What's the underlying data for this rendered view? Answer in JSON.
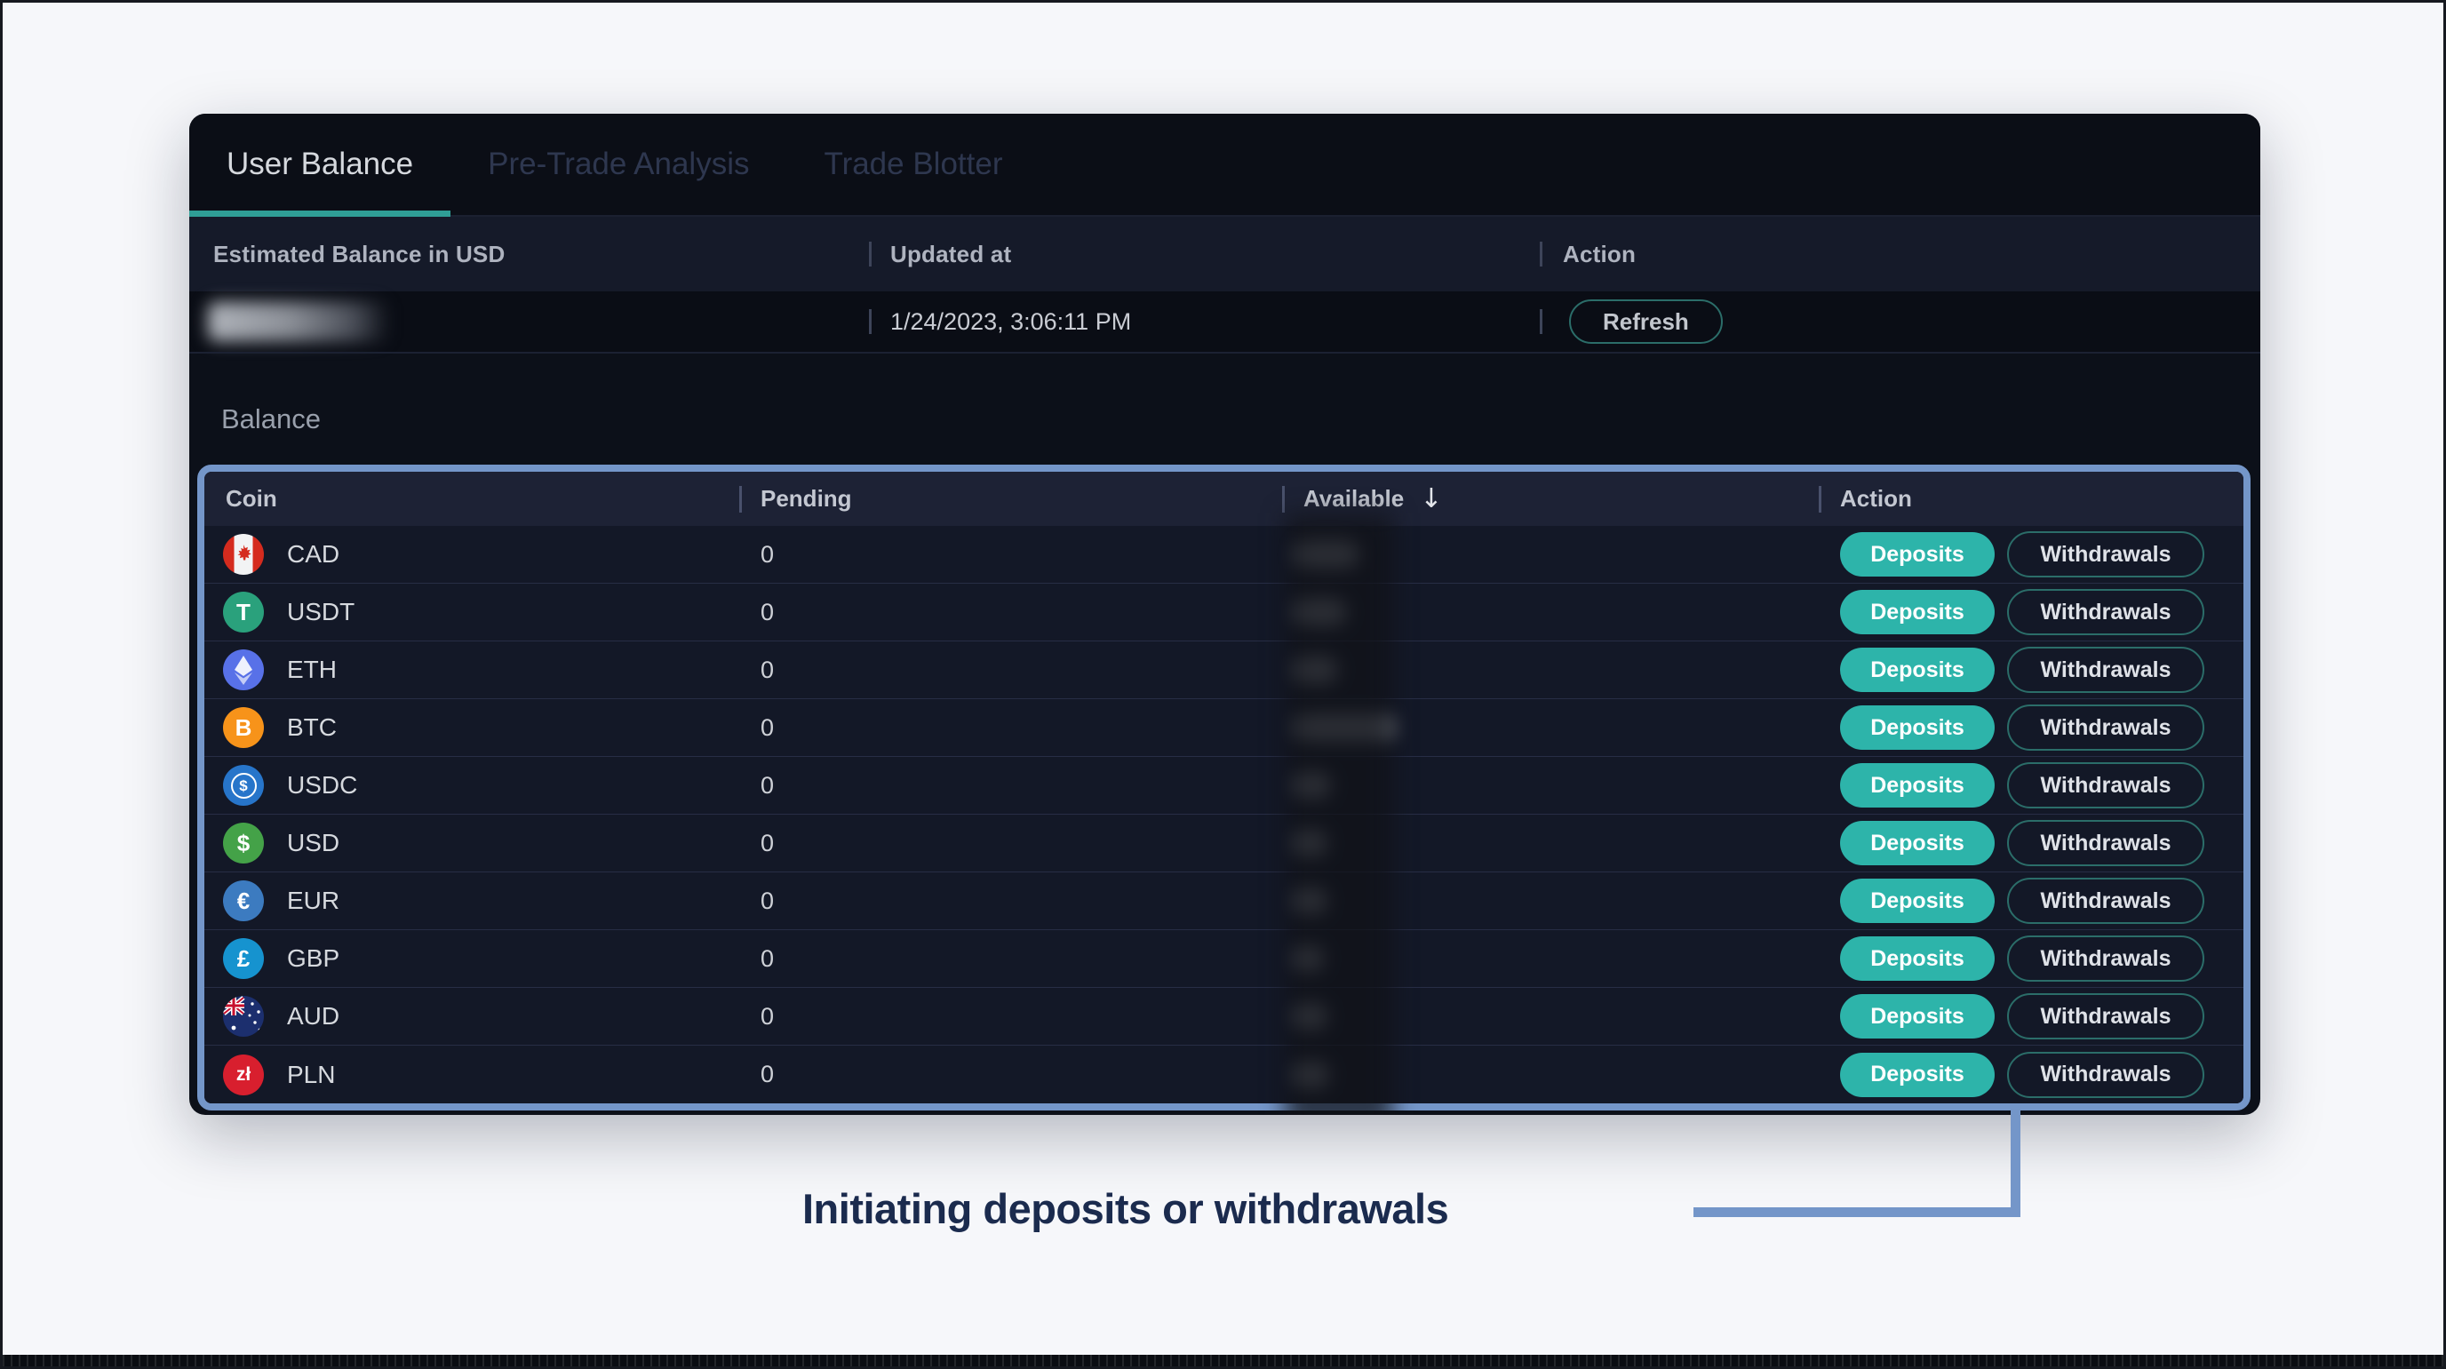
{
  "tabs": [
    {
      "label": "User Balance",
      "active": true
    },
    {
      "label": "Pre-Trade Analysis",
      "active": false
    },
    {
      "label": "Trade Blotter",
      "active": false
    }
  ],
  "summary": {
    "headers": [
      "Estimated Balance in USD",
      "Updated at",
      "Action"
    ],
    "balance_redacted": true,
    "updated_at": "1/24/2023, 3:06:11 PM",
    "refresh_label": "Refresh"
  },
  "balance_section": {
    "title": "Balance"
  },
  "table": {
    "headers": [
      {
        "label": "Coin",
        "sortable": false
      },
      {
        "label": "Pending",
        "sortable": false
      },
      {
        "label": "Available",
        "sortable": true,
        "sort": "desc",
        "sort_icon": "arrow-down"
      },
      {
        "label": "Action",
        "sortable": false
      }
    ],
    "buttons": {
      "deposit": "Deposits",
      "withdraw": "Withdrawals"
    },
    "rows": [
      {
        "coin": "CAD",
        "icon": "canada-flag-icon",
        "icon_kind": "cad",
        "icon_bg": "",
        "icon_glyph": "",
        "pending": "0",
        "available_redacted": true,
        "redact_w": 72
      },
      {
        "coin": "USDT",
        "icon": "tether-icon",
        "icon_kind": "glyph",
        "icon_bg": "#2aa17c",
        "icon_glyph": "T",
        "pending": "0",
        "available_redacted": true,
        "redact_w": 58
      },
      {
        "coin": "ETH",
        "icon": "ethereum-icon",
        "icon_kind": "eth",
        "icon_bg": "#5871e8",
        "icon_glyph": "",
        "pending": "0",
        "available_redacted": true,
        "redact_w": 48
      },
      {
        "coin": "BTC",
        "icon": "bitcoin-icon",
        "icon_kind": "glyph",
        "icon_bg": "#f7931a",
        "icon_glyph": "B",
        "pending": "0",
        "available_redacted": true,
        "redact_w": 112
      },
      {
        "coin": "USDC",
        "icon": "usd-coin-icon",
        "icon_kind": "ring",
        "icon_bg": "#2775ca",
        "icon_glyph": "$",
        "pending": "0",
        "available_redacted": true,
        "redact_w": 40
      },
      {
        "coin": "USD",
        "icon": "us-dollar-icon",
        "icon_kind": "glyph",
        "icon_bg": "#44a248",
        "icon_glyph": "$",
        "pending": "0",
        "available_redacted": true,
        "redact_w": 36
      },
      {
        "coin": "EUR",
        "icon": "euro-icon",
        "icon_kind": "glyph",
        "icon_bg": "#3c7bc0",
        "icon_glyph": "€",
        "pending": "0",
        "available_redacted": true,
        "redact_w": 36
      },
      {
        "coin": "GBP",
        "icon": "british-pound-icon",
        "icon_kind": "glyph",
        "icon_bg": "#1693cf",
        "icon_glyph": "£",
        "pending": "0",
        "available_redacted": true,
        "redact_w": 32
      },
      {
        "coin": "AUD",
        "icon": "australia-flag-icon",
        "icon_kind": "aud",
        "icon_bg": "#1c2f6e",
        "icon_glyph": "",
        "pending": "0",
        "available_redacted": true,
        "redact_w": 36
      },
      {
        "coin": "PLN",
        "icon": "polish-zloty-icon",
        "icon_kind": "glyph",
        "icon_bg": "#d81f2e",
        "icon_glyph": "zł",
        "pending": "0",
        "available_redacted": true,
        "redact_w": 38,
        "glyph_small": true
      }
    ]
  },
  "annotation": {
    "label": "Initiating deposits or withdrawals"
  },
  "colors": {
    "accent_teal": "#2db4aa",
    "teal_outline": "#2b6d69",
    "tab_underline": "#2f9e96",
    "highlight_blue": "#7496c9",
    "annotation_text": "#1b2b4e",
    "card_bg": "#0c1019",
    "table_header_bg": "#1d2235",
    "row_bg": "#131827",
    "page_bg": "#f6f7fa"
  }
}
